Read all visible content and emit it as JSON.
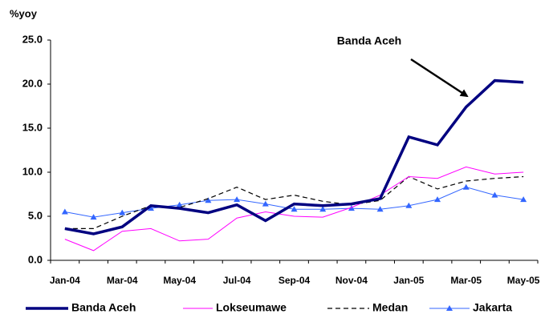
{
  "chart_data": {
    "type": "line",
    "y_axis_label": "%yoy",
    "annotations": [
      "Banda Aceh"
    ],
    "categories": [
      "Jan-04",
      null,
      "Mar-04",
      null,
      "May-04",
      null,
      "Jul-04",
      null,
      "Sep-04",
      null,
      "Nov-04",
      null,
      "Jan-05",
      null,
      "Mar-05",
      null,
      "May-05"
    ],
    "ylim": [
      0,
      25
    ],
    "yticks": [
      {
        "value": 0,
        "label": "0.0"
      },
      {
        "value": 5,
        "label": "5.0"
      },
      {
        "value": 10,
        "label": "10.0"
      },
      {
        "value": 15,
        "label": "15.0"
      },
      {
        "value": 20,
        "label": "20.0"
      },
      {
        "value": 25,
        "label": "25.0"
      }
    ],
    "legend": "bottom",
    "series": [
      {
        "name": "Banda Aceh",
        "color": "#000080",
        "values": [
          3.6,
          3.0,
          3.8,
          6.2,
          5.9,
          5.4,
          6.3,
          4.5,
          6.4,
          6.2,
          6.4,
          7.0,
          14.0,
          13.1,
          17.4,
          20.4,
          20.2
        ]
      },
      {
        "name": "Lokseumawe",
        "color": "#ff00ff",
        "values": [
          2.4,
          1.1,
          3.3,
          3.6,
          2.2,
          2.4,
          4.8,
          5.5,
          5.0,
          4.9,
          6.0,
          7.4,
          9.5,
          9.3,
          10.6,
          9.8,
          10.0
        ]
      },
      {
        "name": "Medan",
        "color": "#000000",
        "dashed": true,
        "values": [
          3.6,
          3.6,
          5.0,
          6.2,
          6.0,
          7.0,
          8.3,
          6.9,
          7.4,
          6.7,
          6.3,
          6.8,
          9.5,
          8.1,
          9.0,
          9.3,
          9.5
        ]
      },
      {
        "name": "Jakarta",
        "color": "#3366ff",
        "marker": "triangle",
        "values": [
          5.5,
          4.9,
          5.4,
          5.9,
          6.3,
          6.8,
          6.9,
          6.4,
          5.8,
          5.8,
          5.9,
          5.8,
          6.2,
          6.9,
          8.3,
          7.4,
          6.9
        ]
      }
    ]
  }
}
